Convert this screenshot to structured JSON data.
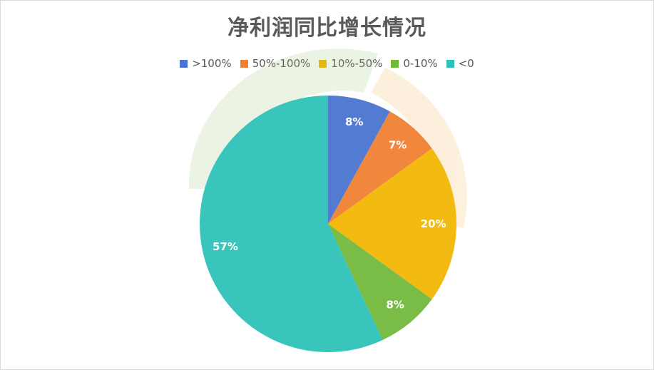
{
  "chart_data": {
    "type": "pie",
    "title": "净利润同比增长情况",
    "categories": [
      ">100%",
      "50%-100%",
      "10%-50%",
      "0-10%",
      "<0"
    ],
    "values": [
      8,
      7,
      20,
      8,
      57
    ],
    "data_labels": [
      "8%",
      "7%",
      "20%",
      "8%",
      "57%"
    ],
    "colors": [
      "#4a74d0",
      "#ef8132",
      "#f2b705",
      "#72b83c",
      "#2ec2b8"
    ],
    "legend_position": "top"
  }
}
